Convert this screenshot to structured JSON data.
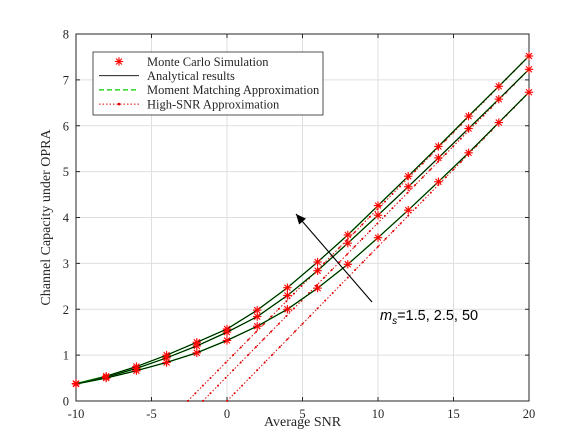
{
  "chart_data": {
    "type": "line",
    "xlabel": "Average SNR",
    "ylabel": "Channel Capacity under OPRA",
    "xlim": [
      -10,
      20
    ],
    "ylim": [
      0,
      8
    ],
    "x_ticks": [
      "-10",
      "-5",
      "0",
      "5",
      "10",
      "15",
      "20"
    ],
    "y_ticks": [
      "0",
      "1",
      "2",
      "3",
      "4",
      "5",
      "6",
      "7",
      "8"
    ],
    "grid": true,
    "legend_position": "top-left",
    "legend": [
      {
        "label": "Monte Carlo Simulation",
        "style": "marker-asterisk",
        "color": "#ff0000"
      },
      {
        "label": "Analytical results",
        "style": "solid",
        "color": "#000000"
      },
      {
        "label": "Moment Matching Approximation",
        "style": "dashed",
        "color": "#00cc00"
      },
      {
        "label": "High-SNR Approximation",
        "style": "dotted-marker",
        "color": "#e00000"
      }
    ],
    "annotation": {
      "prefix": "m",
      "subscript": "s",
      "text": "=1.5, 2.5, 50"
    },
    "colors": {
      "simulation": "#ff0000",
      "analytical": "#000000",
      "moment_matching": "#00cc00",
      "high_snr": "#e00000"
    },
    "x": [
      -10,
      -8,
      -6,
      -4,
      -2,
      0,
      2,
      4,
      6,
      8,
      10,
      12,
      14,
      16,
      18,
      20
    ],
    "series": [
      {
        "values": [
          0.38,
          0.54,
          0.75,
          1.0,
          1.28,
          1.57,
          1.98,
          2.47,
          3.03,
          3.62,
          4.26,
          4.9,
          5.55,
          6.21,
          6.86,
          7.52
        ]
      },
      {
        "values": [
          0.38,
          0.52,
          0.71,
          0.94,
          1.2,
          1.5,
          1.84,
          2.3,
          2.84,
          3.44,
          4.05,
          4.67,
          5.3,
          5.94,
          6.58,
          7.23
        ]
      },
      {
        "values": [
          0.37,
          0.5,
          0.66,
          0.84,
          1.05,
          1.32,
          1.63,
          2.0,
          2.46,
          2.98,
          3.56,
          4.16,
          4.78,
          5.41,
          6.07,
          6.73
        ]
      }
    ],
    "high_snr_series": [
      {
        "x": [
          -2.6,
          20
        ],
        "values": [
          0.0,
          7.52
        ]
      },
      {
        "x": [
          -1.6,
          20
        ],
        "values": [
          0.0,
          7.23
        ]
      },
      {
        "x": [
          0.0,
          20
        ],
        "values": [
          0.0,
          6.73
        ]
      }
    ]
  }
}
